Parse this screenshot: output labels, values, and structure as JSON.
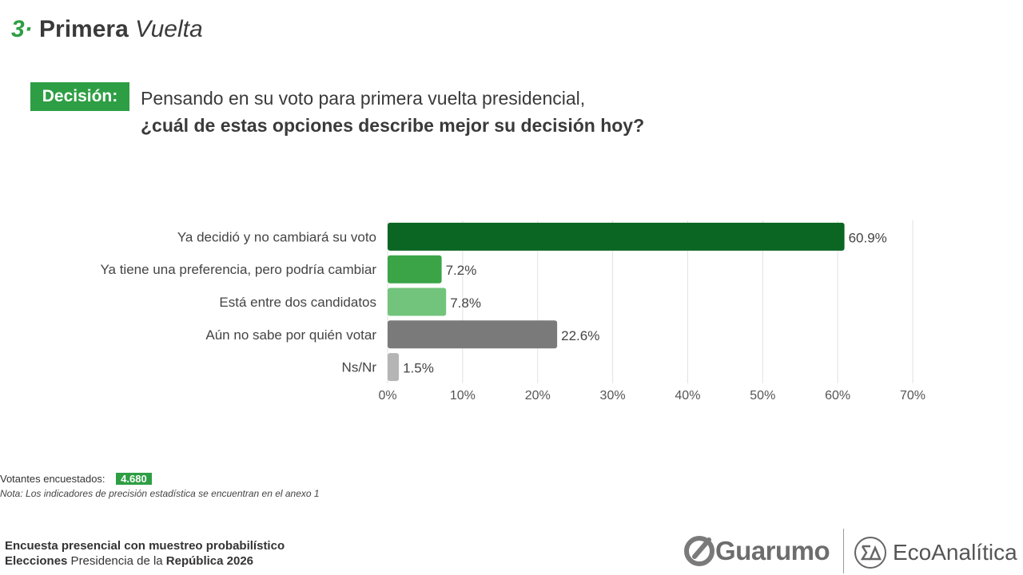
{
  "header": {
    "number": "3·",
    "title_bold": "Primera",
    "title_italic": "Vuelta"
  },
  "question": {
    "tag": "Decisión:",
    "line1": "Pensando en su voto para primera vuelta presidencial,",
    "line2": "¿cuál de estas opciones describe mejor su decisión hoy?"
  },
  "chart_data": {
    "type": "bar",
    "orientation": "horizontal",
    "categories": [
      "Ya decidió y no cambiará su voto",
      "Ya tiene una preferencia, pero podría cambiar",
      "Está entre dos candidatos",
      "Aún no sabe por quién votar",
      "Ns/Nr"
    ],
    "values": [
      60.9,
      7.2,
      7.8,
      22.6,
      1.5
    ],
    "value_labels": [
      "60.9%",
      "7.2%",
      "7.8%",
      "22.6%",
      "1.5%"
    ],
    "colors": [
      "#0b6623",
      "#3aa446",
      "#72c47c",
      "#7a7a7a",
      "#b5b5b5"
    ],
    "xlim": [
      0,
      70
    ],
    "xticks": [
      0,
      10,
      20,
      30,
      40,
      50,
      60,
      70
    ],
    "xtick_labels": [
      "0%",
      "10%",
      "20%",
      "30%",
      "40%",
      "50%",
      "60%",
      "70%"
    ],
    "grid": true
  },
  "footer": {
    "sample_label": "Votantes encuestados:",
    "sample_value": "4.680",
    "note": "Nota: Los indicadores de precisión estadística se encuentran en el anexo 1",
    "survey_line1": "Encuesta presencial con muestreo probabilístico",
    "survey_line2_bold1": "Elecciones",
    "survey_line2_normal": " Presidencia de la ",
    "survey_line2_bold2": "República 2026"
  },
  "logos": {
    "guarumo": "Guarumo",
    "ecoanalitica": "EcoAnalítica"
  }
}
